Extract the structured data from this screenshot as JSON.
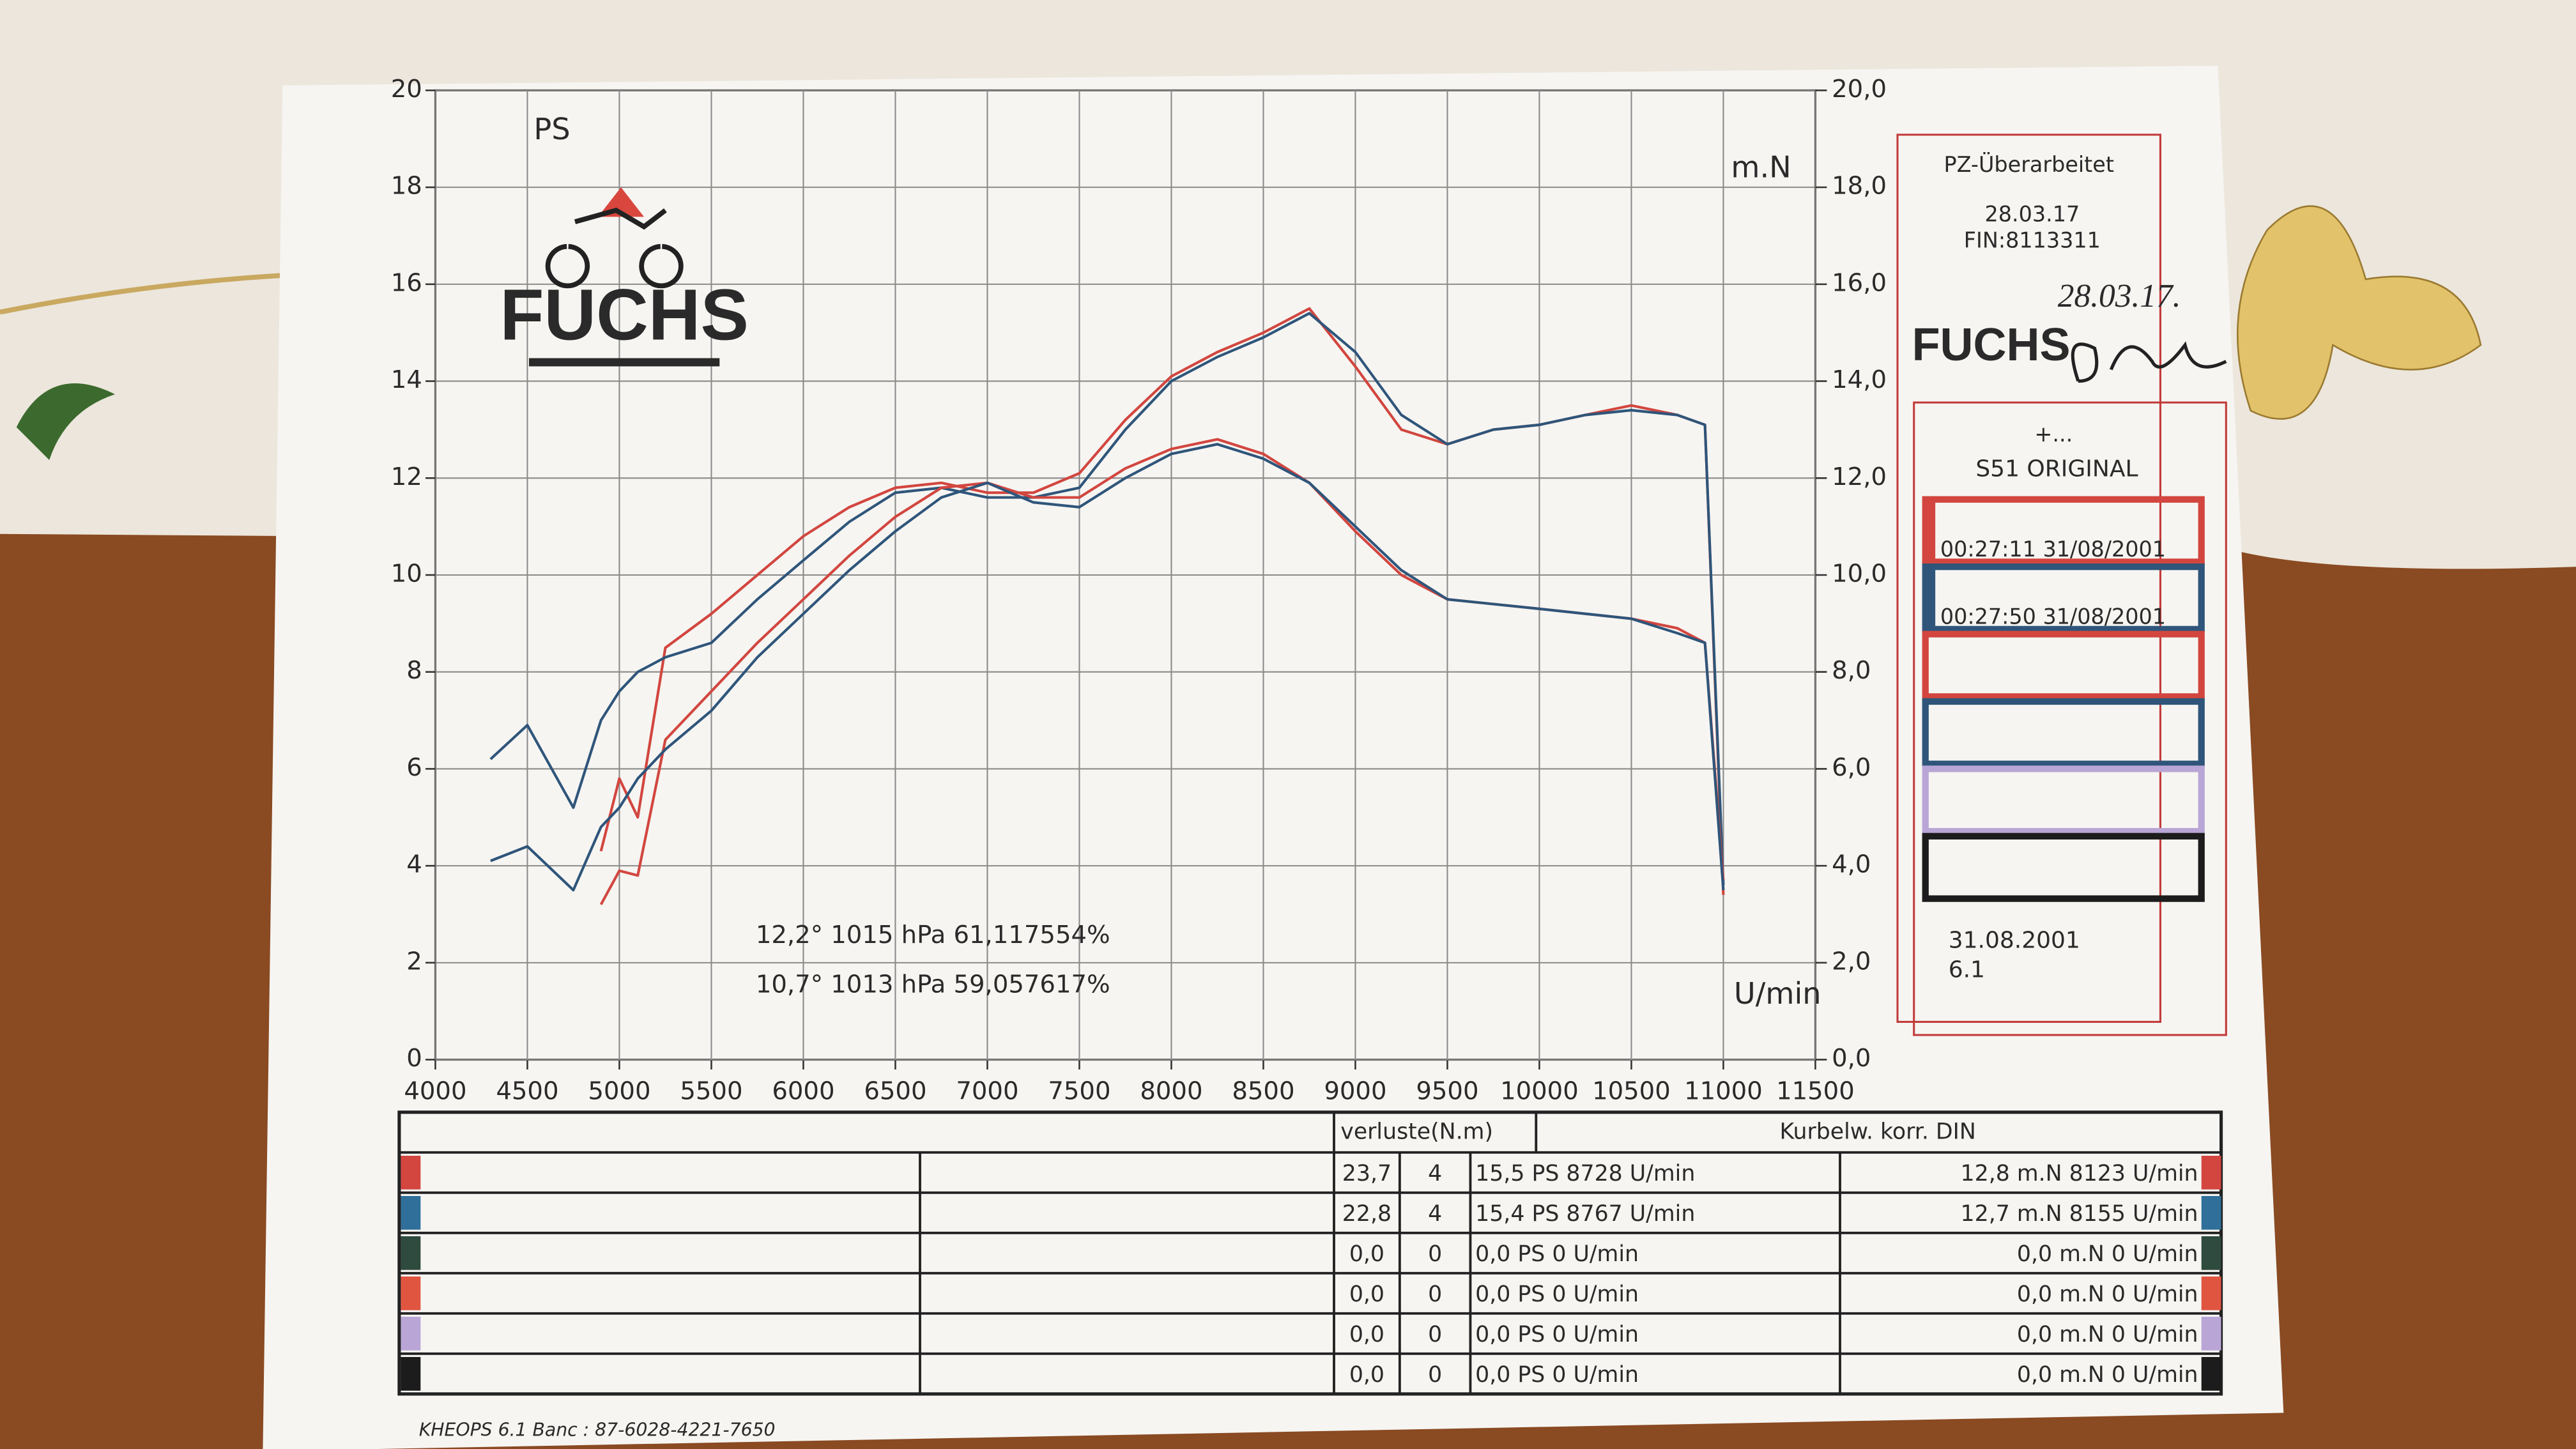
{
  "chart_data": {
    "type": "line",
    "y_label": "PS",
    "y2_label": "m.N",
    "x_label": "U/min",
    "annotations": [
      {
        "text": "12,2°  1015 hPa  61,117554%",
        "color": "#c23a3a"
      },
      {
        "text": "10,7°  1013 hPa  59,057617%",
        "color": "#2f4f7a"
      }
    ],
    "x": [
      4300,
      4500,
      4750,
      4900,
      5000,
      5100,
      5250,
      5500,
      5750,
      6000,
      6250,
      6500,
      6750,
      7000,
      7250,
      7500,
      7750,
      8000,
      8250,
      8500,
      8750,
      9000,
      9250,
      9500,
      9750,
      10000,
      10250,
      10500,
      10750,
      10900,
      11000
    ],
    "series": [
      {
        "name": "00:27:11  31/08/2001",
        "color": "#d2463f",
        "values": [
          null,
          null,
          null,
          4.3,
          5.8,
          5.0,
          8.5,
          9.2,
          10.0,
          10.8,
          11.4,
          11.8,
          11.9,
          11.7,
          11.7,
          12.1,
          13.2,
          14.1,
          14.6,
          15.0,
          15.5,
          14.3,
          13.0,
          12.7,
          13.0,
          13.1,
          13.3,
          13.5,
          13.3,
          13.1,
          3.4
        ]
      },
      {
        "name": "00:27:50  31/08/2001",
        "color": "#2f557a",
        "values": [
          6.2,
          6.9,
          5.2,
          7.0,
          7.6,
          8.0,
          8.3,
          8.6,
          9.5,
          10.3,
          11.1,
          11.7,
          11.8,
          11.6,
          11.6,
          11.8,
          13.0,
          14.0,
          14.5,
          14.9,
          15.4,
          14.6,
          13.3,
          12.7,
          13.0,
          13.1,
          13.3,
          13.4,
          13.3,
          13.1,
          3.6
        ]
      },
      {
        "color": "#d2463f",
        "axis": "y2",
        "values": [
          null,
          null,
          null,
          3.2,
          3.9,
          3.8,
          6.6,
          7.6,
          8.6,
          9.5,
          10.4,
          11.2,
          11.8,
          11.9,
          11.6,
          11.6,
          12.2,
          12.6,
          12.8,
          12.5,
          11.9,
          10.9,
          10.0,
          9.5,
          9.4,
          9.3,
          9.2,
          9.1,
          8.9,
          8.6,
          3.7
        ]
      },
      {
        "color": "#2f557a",
        "axis": "y2",
        "values": [
          4.1,
          4.4,
          3.5,
          4.8,
          5.2,
          5.8,
          6.4,
          7.2,
          8.3,
          9.2,
          10.1,
          10.9,
          11.6,
          11.9,
          11.5,
          11.4,
          12.0,
          12.5,
          12.7,
          12.4,
          11.9,
          11.0,
          10.1,
          9.5,
          9.4,
          9.3,
          9.2,
          9.1,
          8.8,
          8.6,
          3.5
        ]
      }
    ],
    "xlim": [
      4000,
      11500
    ],
    "xticks": [
      4000,
      4500,
      5000,
      5500,
      6000,
      6500,
      7000,
      7500,
      8000,
      8500,
      9000,
      9500,
      10000,
      10500,
      11000,
      11500
    ],
    "ylim": [
      0,
      20
    ],
    "yticks": [
      0,
      2,
      4,
      6,
      8,
      10,
      12,
      14,
      16,
      18,
      20
    ],
    "y2lim": [
      0,
      20
    ],
    "y2ticks": [
      {
        "value": 0,
        "label": "0,0"
      },
      {
        "value": 2,
        "label": "2,0"
      },
      {
        "value": 4,
        "label": "4,0"
      },
      {
        "value": 6,
        "label": "6,0"
      },
      {
        "value": 8,
        "label": "8,0"
      },
      {
        "value": 10,
        "label": "10,0"
      },
      {
        "value": 12,
        "label": "12,0"
      },
      {
        "value": 14,
        "label": "14,0"
      },
      {
        "value": 16,
        "label": "16,0"
      },
      {
        "value": 18,
        "label": "18,0"
      },
      {
        "value": 20,
        "label": "20,0"
      }
    ],
    "grid": true
  },
  "logo": "FUCHS",
  "sidebar": {
    "title": "PZ-Überarbeitet",
    "date": "28.03.17",
    "fin": "FIN:8113311",
    "handwriting": "28.03.17.",
    "note": "+...",
    "model": "S51 ORIGINAL",
    "print_date": "31.08.2001",
    "version": "6.1"
  },
  "table": {
    "headers": [
      "verluste(N.m)",
      "Kurbelw. korr. DIN"
    ],
    "rows": [
      {
        "color": "#d2463f",
        "cells": [
          "23,7",
          "4",
          "15,5 PS 8728 U/min",
          "12,8 m.N 8123 U/min"
        ]
      },
      {
        "color": "#2f6f9a",
        "cells": [
          "22,8",
          "4",
          "15,4 PS 8767 U/min",
          "12,7 m.N 8155 U/min"
        ]
      },
      {
        "color": "#2f4a3e",
        "cells": [
          "0,0",
          "0",
          "0,0 PS 0 U/min",
          "0,0 m.N 0 U/min"
        ]
      },
      {
        "color": "#e0553f",
        "cells": [
          "0,0",
          "0",
          "0,0 PS 0 U/min",
          "0,0 m.N 0 U/min"
        ]
      },
      {
        "color": "#b9a6d6",
        "cells": [
          "0,0",
          "0",
          "0,0 PS 0 U/min",
          "0,0 m.N 0 U/min"
        ]
      },
      {
        "color": "#1c1c1c",
        "cells": [
          "0,0",
          "0",
          "0,0 PS 0 U/min",
          "0,0 m.N 0 U/min"
        ]
      }
    ]
  },
  "footer": "KHEOPS 6.1   Banc : 87-6028-4221-7650"
}
